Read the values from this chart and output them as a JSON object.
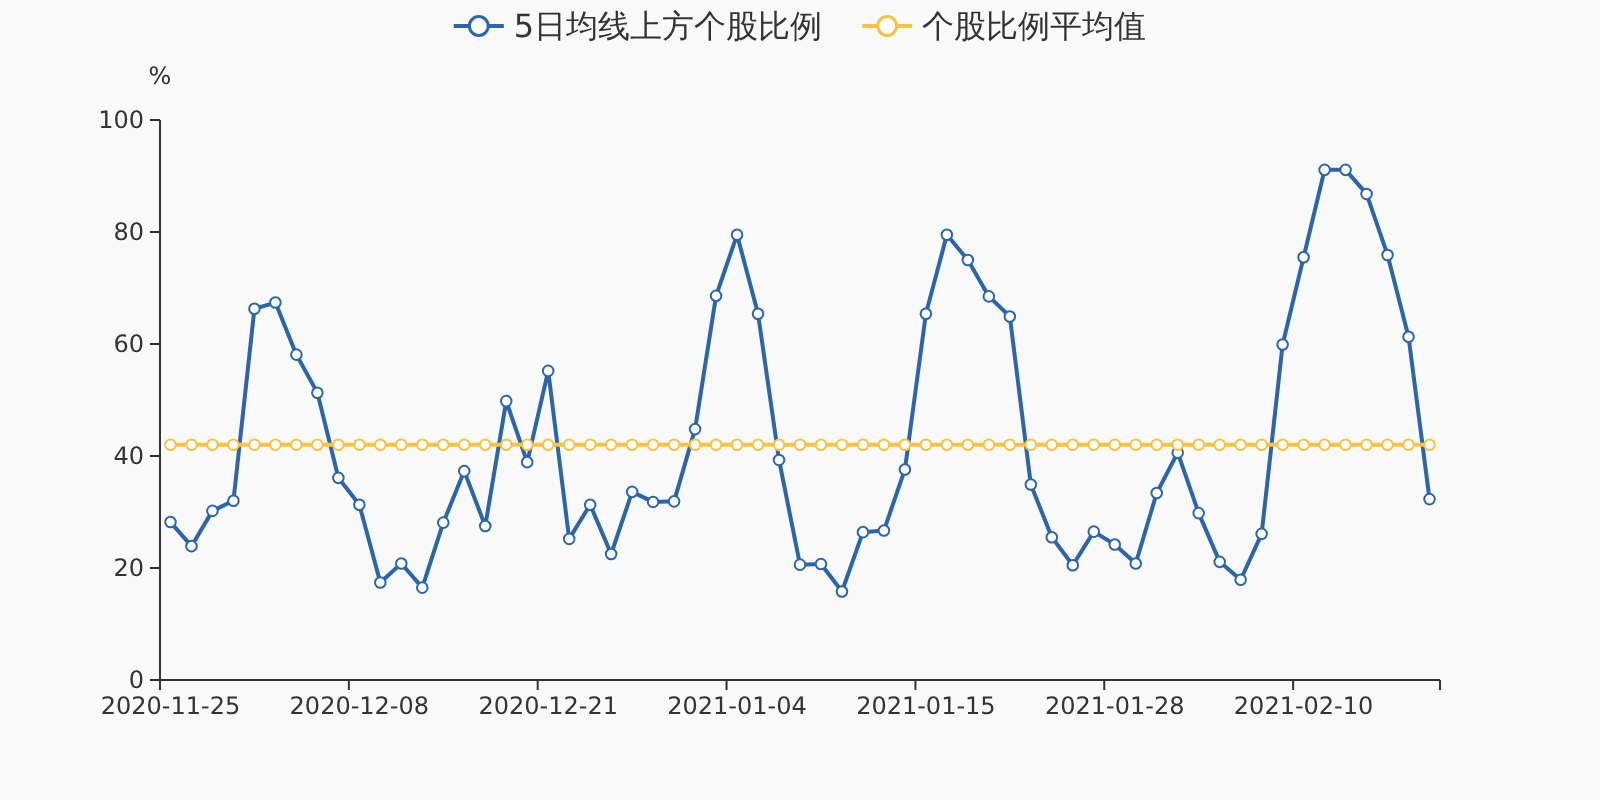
{
  "chart_data": {
    "type": "line",
    "ylabel": "%",
    "categories": [
      "2020-11-25",
      null,
      null,
      null,
      null,
      null,
      null,
      null,
      null,
      "2020-12-08",
      null,
      null,
      null,
      null,
      null,
      null,
      null,
      null,
      "2020-12-21",
      null,
      null,
      null,
      null,
      null,
      null,
      null,
      null,
      "2021-01-04",
      null,
      null,
      null,
      null,
      null,
      null,
      null,
      null,
      "2021-01-15",
      null,
      null,
      null,
      null,
      null,
      null,
      null,
      null,
      "2021-01-28",
      null,
      null,
      null,
      null,
      null,
      null,
      null,
      null,
      "2021-02-10",
      null,
      null,
      null,
      null,
      null,
      null
    ],
    "series": [
      {
        "name": "5日均线上方个股比例",
        "color": "#2b66aa",
        "values": [
          28.2,
          23.9,
          30.2,
          32.0,
          66.3,
          67.4,
          58.1,
          51.3,
          36.1,
          31.3,
          17.4,
          20.8,
          16.5,
          28.1,
          37.3,
          27.5,
          49.8,
          38.9,
          55.2,
          25.2,
          31.3,
          22.5,
          33.6,
          31.8,
          31.9,
          44.8,
          68.6,
          79.5,
          65.4,
          39.3,
          20.6,
          20.7,
          15.8,
          26.4,
          26.7,
          37.6,
          65.4,
          79.5,
          75.0,
          68.5,
          64.9,
          34.9,
          25.5,
          20.5,
          26.5,
          24.2,
          20.8,
          33.4,
          40.6,
          29.8,
          21.1,
          17.9,
          26.1,
          59.9,
          75.5,
          91.1,
          91.1,
          86.8,
          75.9,
          61.3,
          32.3
        ]
      },
      {
        "name": "个股比例平均值",
        "color": "#f6c343",
        "values": [
          42,
          42,
          42,
          42,
          42,
          42,
          42,
          42,
          42,
          42,
          42,
          42,
          42,
          42,
          42,
          42,
          42,
          42,
          42,
          42,
          42,
          42,
          42,
          42,
          42,
          42,
          42,
          42,
          42,
          42,
          42,
          42,
          42,
          42,
          42,
          42,
          42,
          42,
          42,
          42,
          42,
          42,
          42,
          42,
          42,
          42,
          42,
          42,
          42,
          42,
          42,
          42,
          42,
          42,
          42,
          42,
          42,
          42,
          42,
          42,
          42
        ]
      }
    ],
    "ylim": [
      0,
      100
    ],
    "yticks": [
      0,
      20,
      40,
      60,
      80,
      100
    ],
    "legend": "top",
    "marker": "circle",
    "line_style": "solid"
  }
}
